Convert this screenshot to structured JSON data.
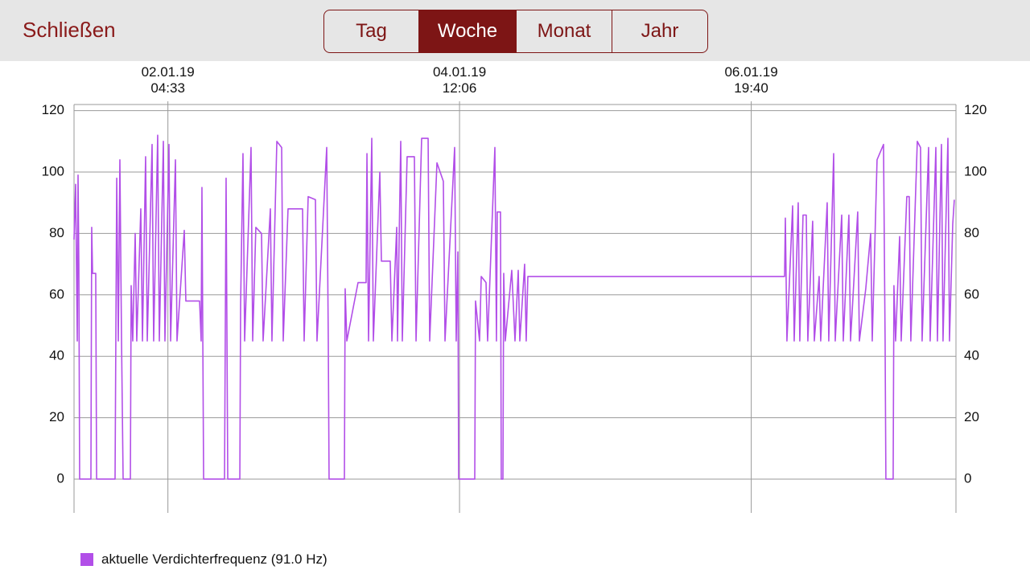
{
  "header": {
    "close": "Schließen",
    "tabs": [
      "Tag",
      "Woche",
      "Monat",
      "Jahr"
    ],
    "selected_tab": 1
  },
  "chart_data": {
    "type": "line",
    "x": [
      "2019-01-01T10:40",
      "2019-01-01T10:58",
      "2019-01-01T11:17",
      "2019-01-01T11:26",
      "2019-01-01T11:35",
      "2019-01-01T11:44",
      "2019-01-01T13:53",
      "2019-01-01T14:02",
      "2019-01-01T14:12",
      "2019-01-01T14:48",
      "2019-01-01T14:58",
      "2019-01-01T18:29",
      "2019-01-01T18:48",
      "2019-01-01T19:06",
      "2019-01-01T19:24",
      "2019-01-01T19:43",
      "2019-01-01T20:01",
      "2019-01-01T21:24",
      "2019-01-01T21:33",
      "2019-01-01T21:51",
      "2019-01-01T22:19",
      "2019-01-01T22:37",
      "2019-01-01T23:23",
      "2019-01-01T23:42",
      "2019-01-02T00:18",
      "2019-01-02T00:37",
      "2019-01-02T01:32",
      "2019-01-02T01:50",
      "2019-01-02T02:36",
      "2019-01-02T02:55",
      "2019-01-02T03:41",
      "2019-01-02T03:59",
      "2019-01-02T04:45",
      "2019-01-02T05:04",
      "2019-01-02T05:59",
      "2019-01-02T06:17",
      "2019-01-02T07:40",
      "2019-01-02T07:58",
      "2019-01-02T10:35",
      "2019-01-02T10:53",
      "2019-01-02T11:02",
      "2019-01-02T11:21",
      "2019-01-02T15:20",
      "2019-01-02T15:38",
      "2019-01-02T15:57",
      "2019-01-02T18:15",
      "2019-01-02T18:24",
      "2019-01-02T18:51",
      "2019-01-02T19:10",
      "2019-01-02T20:23",
      "2019-01-02T20:42",
      "2019-01-02T21:18",
      "2019-01-02T22:23",
      "2019-01-02T22:41",
      "2019-01-03T00:04",
      "2019-01-03T00:22",
      "2019-01-03T01:18",
      "2019-01-03T02:13",
      "2019-01-03T02:31",
      "2019-01-03T03:26",
      "2019-01-03T06:12",
      "2019-01-03T06:30",
      "2019-01-03T07:16",
      "2019-01-03T08:39",
      "2019-01-03T08:57",
      "2019-01-03T10:48",
      "2019-01-03T11:06",
      "2019-01-03T11:15",
      "2019-01-03T14:10",
      "2019-01-03T14:19",
      "2019-01-03T14:38",
      "2019-01-03T16:46",
      "2019-01-03T18:18",
      "2019-01-03T18:28",
      "2019-01-03T18:46",
      "2019-01-03T19:23",
      "2019-01-03T19:41",
      "2019-01-03T20:55",
      "2019-01-03T21:13",
      "2019-01-03T22:54",
      "2019-01-03T23:13",
      "2019-01-04T00:08",
      "2019-01-04T00:17",
      "2019-01-04T00:54",
      "2019-01-04T01:12",
      "2019-01-04T02:07",
      "2019-01-04T03:30",
      "2019-01-04T03:49",
      "2019-01-04T04:53",
      "2019-01-04T06:07",
      "2019-01-04T06:25",
      "2019-01-04T07:48",
      "2019-01-04T09:01",
      "2019-01-04T09:20",
      "2019-01-04T11:10",
      "2019-01-04T11:28",
      "2019-01-04T11:47",
      "2019-01-04T11:56",
      "2019-01-04T15:00",
      "2019-01-04T15:09",
      "2019-01-04T15:55",
      "2019-01-04T16:14",
      "2019-01-04T17:09",
      "2019-01-04T17:27",
      "2019-01-04T18:50",
      "2019-01-04T19:08",
      "2019-01-04T19:17",
      "2019-01-04T19:54",
      "2019-01-04T20:03",
      "2019-01-04T20:22",
      "2019-01-04T20:31",
      "2019-01-04T20:49",
      "2019-01-04T22:03",
      "2019-01-04T22:40",
      "2019-01-04T23:17",
      "2019-01-04T23:35",
      "2019-01-05T00:30",
      "2019-01-05T00:48",
      "2019-01-05T01:07",
      "2019-01-07T02:01",
      "2019-01-07T02:10",
      "2019-01-07T02:28",
      "2019-01-07T03:33",
      "2019-01-07T03:51",
      "2019-01-07T04:37",
      "2019-01-07T04:55",
      "2019-01-07T05:32",
      "2019-01-07T06:09",
      "2019-01-07T06:27",
      "2019-01-07T07:22",
      "2019-01-07T07:41",
      "2019-01-07T08:36",
      "2019-01-07T08:54",
      "2019-01-07T10:08",
      "2019-01-07T10:26",
      "2019-01-07T11:22",
      "2019-01-07T11:40",
      "2019-01-07T12:54",
      "2019-01-07T13:12",
      "2019-01-07T14:16",
      "2019-01-07T14:35",
      "2019-01-07T15:57",
      "2019-01-07T16:16",
      "2019-01-07T17:29",
      "2019-01-07T18:25",
      "2019-01-07T18:43",
      "2019-01-07T19:38",
      "2019-01-07T20:52",
      "2019-01-07T21:10",
      "2019-01-07T21:19",
      "2019-01-07T22:42",
      "2019-01-07T22:51",
      "2019-01-07T23:10",
      "2019-01-07T23:56",
      "2019-01-08T00:14",
      "2019-01-08T01:18",
      "2019-01-08T01:46",
      "2019-01-08T02:04",
      "2019-01-08T03:18",
      "2019-01-08T03:55",
      "2019-01-08T04:13",
      "2019-01-08T05:27",
      "2019-01-08T05:45",
      "2019-01-08T06:50",
      "2019-01-08T07:08",
      "2019-01-08T07:54",
      "2019-01-08T08:12",
      "2019-01-08T09:08",
      "2019-01-08T09:26",
      "2019-01-08T10:03",
      "2019-01-08T10:21"
    ],
    "series": [
      {
        "name": "aktuelle Verdichterfrequenz (91.0 Hz)",
        "color": "#b24fe8",
        "values": [
          78,
          96,
          45,
          99,
          70,
          0,
          0,
          82,
          67,
          67,
          0,
          0,
          98,
          45,
          104,
          45,
          0,
          0,
          63,
          45,
          80,
          45,
          88,
          45,
          105,
          45,
          109,
          45,
          112,
          45,
          110,
          45,
          109,
          45,
          104,
          45,
          81,
          58,
          58,
          45,
          95,
          0,
          0,
          98,
          0,
          0,
          57,
          106,
          45,
          108,
          45,
          82,
          80,
          45,
          88,
          45,
          110,
          108,
          45,
          88,
          88,
          45,
          92,
          91,
          45,
          108,
          45,
          0,
          0,
          62,
          45,
          64,
          64,
          106,
          45,
          111,
          45,
          100,
          71,
          71,
          45,
          82,
          45,
          110,
          45,
          105,
          105,
          45,
          111,
          111,
          45,
          103,
          97,
          45,
          108,
          45,
          74,
          0,
          0,
          58,
          45,
          66,
          64,
          45,
          108,
          45,
          87,
          87,
          0,
          0,
          67,
          45,
          68,
          45,
          68,
          45,
          70,
          45,
          66,
          66,
          85,
          45,
          89,
          45,
          90,
          45,
          86,
          86,
          45,
          84,
          45,
          66,
          45,
          90,
          45,
          106,
          45,
          86,
          45,
          86,
          45,
          87,
          45,
          62,
          80,
          45,
          104,
          109,
          45,
          0,
          0,
          63,
          45,
          79,
          45,
          92,
          92,
          45,
          110,
          108,
          45,
          108,
          45,
          108,
          45,
          109,
          45,
          111,
          45,
          83,
          91
        ]
      }
    ],
    "xlim": [
      "2019-01-01T10:40",
      "2019-01-08T10:40"
    ],
    "xticks": [
      {
        "value": "2019-01-02T04:33",
        "label": "02.01.19\n04:33"
      },
      {
        "value": "2019-01-04T12:06",
        "label": "04.01.19\n12:06"
      },
      {
        "value": "2019-01-06T19:40",
        "label": "06.01.19\n19:40"
      }
    ],
    "ylim": [
      -11,
      122
    ],
    "yticks": [
      0,
      20,
      40,
      60,
      80,
      100,
      120
    ],
    "grid": true
  }
}
